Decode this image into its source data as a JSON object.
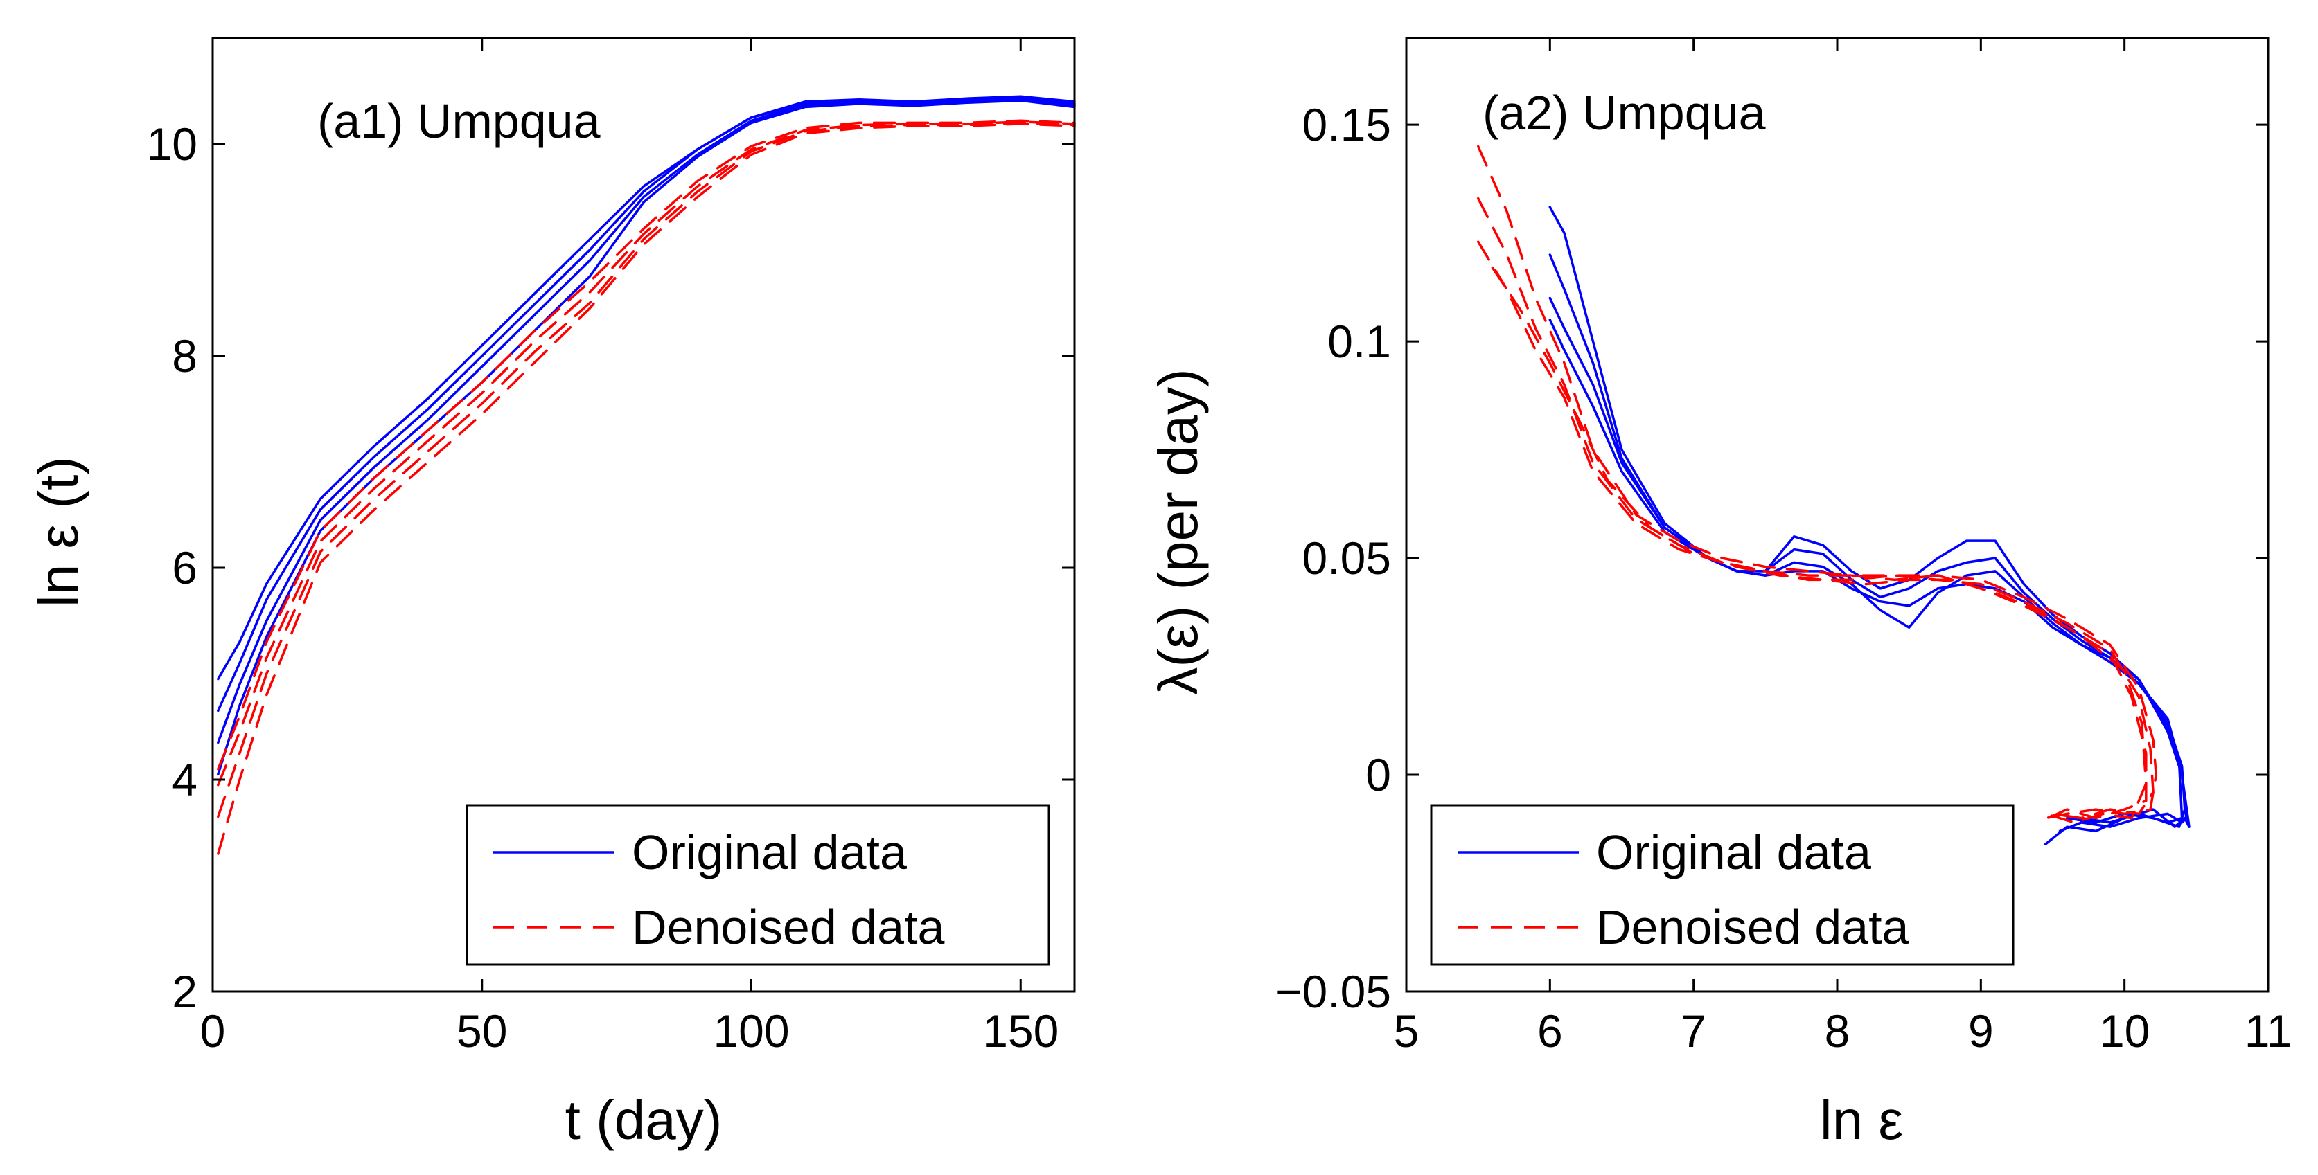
{
  "colors": {
    "original": "#0000ff",
    "denoised": "#ff0000",
    "axis": "#000000",
    "background": "#ffffff"
  },
  "chart_data": [
    {
      "type": "line",
      "title": "(a1) Umpqua",
      "xlabel": "t (day)",
      "ylabel": "ln ε (t)",
      "xlim": [
        0,
        160
      ],
      "ylim": [
        2,
        11
      ],
      "xticks": [
        0,
        50,
        100,
        150
      ],
      "yticks": [
        2,
        4,
        6,
        8,
        10
      ],
      "xtick_labels": [
        "0",
        "50",
        "100",
        "150"
      ],
      "ytick_labels": [
        "2",
        "4",
        "6",
        "8",
        "10"
      ],
      "grid": false,
      "legend": {
        "position": "bottom-right",
        "entries": [
          {
            "label": "Original data",
            "style": "solid",
            "color": "#0000ff"
          },
          {
            "label": "Denoised data",
            "style": "dashed",
            "color": "#ff0000"
          }
        ]
      },
      "series": [
        {
          "name": "Original data",
          "style": "solid",
          "color": "#0000ff",
          "x": [
            1,
            5,
            10,
            20,
            30,
            40,
            50,
            60,
            70,
            80,
            90,
            100,
            110,
            120,
            130,
            140,
            150,
            160
          ],
          "y": [
            4.95,
            5.3,
            5.85,
            6.65,
            7.15,
            7.6,
            8.1,
            8.6,
            9.1,
            9.6,
            9.95,
            10.25,
            10.4,
            10.42,
            10.4,
            10.43,
            10.45,
            10.4
          ]
        },
        {
          "name": "Original data",
          "style": "solid",
          "color": "#0000ff",
          "x": [
            1,
            5,
            10,
            20,
            30,
            40,
            50,
            60,
            70,
            80,
            90,
            100,
            110,
            120,
            130,
            140,
            150,
            160
          ],
          "y": [
            4.65,
            5.1,
            5.7,
            6.55,
            7.05,
            7.5,
            8.0,
            8.5,
            9.0,
            9.55,
            9.95,
            10.25,
            10.38,
            10.4,
            10.38,
            10.41,
            10.43,
            10.38
          ]
        },
        {
          "name": "Original data",
          "style": "solid",
          "color": "#0000ff",
          "x": [
            1,
            5,
            10,
            20,
            30,
            40,
            50,
            60,
            70,
            80,
            90,
            100,
            110,
            120,
            130,
            140,
            150,
            160
          ],
          "y": [
            4.35,
            4.9,
            5.5,
            6.45,
            6.95,
            7.4,
            7.9,
            8.4,
            8.9,
            9.5,
            9.9,
            10.22,
            10.37,
            10.4,
            10.37,
            10.4,
            10.42,
            10.36
          ]
        },
        {
          "name": "Original data",
          "style": "solid",
          "color": "#0000ff",
          "x": [
            1,
            5,
            10,
            20,
            30,
            40,
            50,
            60,
            70,
            80,
            90,
            100,
            110,
            120,
            130,
            140,
            150,
            160
          ],
          "y": [
            4.05,
            4.7,
            5.35,
            6.35,
            6.85,
            7.3,
            7.75,
            8.25,
            8.75,
            9.45,
            9.88,
            10.2,
            10.35,
            10.38,
            10.36,
            10.39,
            10.41,
            10.35
          ]
        },
        {
          "name": "Denoised data",
          "style": "dashed",
          "color": "#ff0000",
          "x": [
            1,
            5,
            10,
            20,
            30,
            40,
            50,
            60,
            70,
            80,
            90,
            100,
            110,
            120,
            130,
            140,
            150,
            160
          ],
          "y": [
            4.1,
            4.6,
            5.3,
            6.35,
            6.85,
            7.3,
            7.75,
            8.25,
            8.7,
            9.2,
            9.65,
            9.98,
            10.15,
            10.2,
            10.2,
            10.2,
            10.22,
            10.2
          ]
        },
        {
          "name": "Denoised data",
          "style": "dashed",
          "color": "#ff0000",
          "x": [
            1,
            5,
            10,
            20,
            30,
            40,
            50,
            60,
            70,
            80,
            90,
            100,
            110,
            120,
            130,
            140,
            150,
            160
          ],
          "y": [
            3.95,
            4.45,
            5.15,
            6.25,
            6.75,
            7.2,
            7.65,
            8.15,
            8.6,
            9.15,
            9.6,
            9.95,
            10.13,
            10.18,
            10.19,
            10.19,
            10.21,
            10.19
          ]
        },
        {
          "name": "Denoised data",
          "style": "dashed",
          "color": "#ff0000",
          "x": [
            1,
            5,
            10,
            20,
            30,
            40,
            50,
            60,
            70,
            80,
            90,
            100,
            110,
            120,
            130,
            140,
            150,
            160
          ],
          "y": [
            3.65,
            4.25,
            5.0,
            6.15,
            6.65,
            7.1,
            7.55,
            8.05,
            8.5,
            9.1,
            9.55,
            9.93,
            10.12,
            10.17,
            10.18,
            10.18,
            10.2,
            10.18
          ]
        },
        {
          "name": "Denoised data",
          "style": "dashed",
          "color": "#ff0000",
          "x": [
            1,
            5,
            10,
            20,
            30,
            40,
            50,
            60,
            70,
            80,
            90,
            100,
            110,
            120,
            130,
            140,
            150,
            160
          ],
          "y": [
            3.3,
            4.0,
            4.8,
            6.05,
            6.55,
            7.0,
            7.45,
            7.95,
            8.45,
            9.05,
            9.5,
            9.9,
            10.1,
            10.15,
            10.17,
            10.17,
            10.19,
            10.17
          ]
        }
      ]
    },
    {
      "type": "line",
      "title": "(a2) Umpqua",
      "xlabel": "ln ε",
      "ylabel": "λ(ε) (per day)",
      "xlim": [
        5,
        11
      ],
      "ylim": [
        -0.05,
        0.17
      ],
      "xticks": [
        5,
        6,
        7,
        8,
        9,
        10,
        11
      ],
      "yticks": [
        -0.05,
        0,
        0.05,
        0.1,
        0.15
      ],
      "xtick_labels": [
        "5",
        "6",
        "7",
        "8",
        "9",
        "10",
        "11"
      ],
      "ytick_labels": [
        "−0.05",
        "0",
        "0.05",
        "0.1",
        "0.15"
      ],
      "grid": false,
      "legend": {
        "position": "bottom-left",
        "entries": [
          {
            "label": "Original data",
            "style": "solid",
            "color": "#0000ff"
          },
          {
            "label": "Denoised data",
            "style": "dashed",
            "color": "#ff0000"
          }
        ]
      },
      "series": [
        {
          "name": "Original data",
          "style": "solid",
          "color": "#0000ff",
          "x": [
            6.0,
            6.1,
            6.3,
            6.5,
            6.8,
            7.1,
            7.3,
            7.5,
            7.7,
            7.9,
            8.1,
            8.3,
            8.5,
            8.7,
            8.9,
            9.1,
            9.3,
            9.5,
            9.7,
            9.9,
            10.1,
            10.3,
            10.4,
            10.45,
            10.42,
            10.35,
            10.2,
            10.0,
            9.8,
            9.6,
            9.45
          ],
          "y": [
            0.131,
            0.125,
            0.1,
            0.075,
            0.058,
            0.05,
            0.047,
            0.047,
            0.055,
            0.053,
            0.047,
            0.043,
            0.045,
            0.05,
            0.054,
            0.054,
            0.044,
            0.037,
            0.032,
            0.028,
            0.022,
            0.01,
            0.0,
            -0.012,
            -0.01,
            -0.012,
            -0.008,
            -0.01,
            -0.013,
            -0.012,
            -0.016
          ]
        },
        {
          "name": "Original data",
          "style": "solid",
          "color": "#0000ff",
          "x": [
            6.0,
            6.1,
            6.3,
            6.5,
            6.8,
            7.1,
            7.3,
            7.5,
            7.7,
            7.9,
            8.1,
            8.3,
            8.5,
            8.7,
            8.9,
            9.1,
            9.3,
            9.5,
            9.7,
            9.9,
            10.1,
            10.3,
            10.4,
            10.43,
            10.4,
            10.3,
            10.1,
            9.9,
            9.7,
            9.55
          ],
          "y": [
            0.12,
            0.112,
            0.095,
            0.073,
            0.057,
            0.05,
            0.047,
            0.047,
            0.052,
            0.051,
            0.045,
            0.041,
            0.043,
            0.047,
            0.049,
            0.05,
            0.042,
            0.036,
            0.031,
            0.027,
            0.022,
            0.011,
            0.001,
            -0.01,
            -0.011,
            -0.009,
            -0.01,
            -0.012,
            -0.011,
            -0.013
          ]
        },
        {
          "name": "Original data",
          "style": "solid",
          "color": "#0000ff",
          "x": [
            6.0,
            6.1,
            6.3,
            6.5,
            6.8,
            7.1,
            7.3,
            7.5,
            7.7,
            7.9,
            8.1,
            8.3,
            8.5,
            8.7,
            8.9,
            9.1,
            9.3,
            9.5,
            9.7,
            9.9,
            10.1,
            10.3,
            10.4,
            10.42,
            10.38,
            10.2,
            10.0,
            9.8,
            9.6
          ],
          "y": [
            0.11,
            0.103,
            0.09,
            0.072,
            0.057,
            0.05,
            0.047,
            0.046,
            0.049,
            0.048,
            0.044,
            0.038,
            0.034,
            0.042,
            0.046,
            0.047,
            0.041,
            0.035,
            0.03,
            0.027,
            0.021,
            0.012,
            0.002,
            -0.008,
            -0.012,
            -0.01,
            -0.009,
            -0.011,
            -0.01
          ]
        },
        {
          "name": "Original data",
          "style": "solid",
          "color": "#0000ff",
          "x": [
            6.0,
            6.1,
            6.3,
            6.5,
            6.8,
            7.1,
            7.3,
            7.5,
            7.7,
            7.9,
            8.1,
            8.3,
            8.5,
            8.7,
            8.9,
            9.1,
            9.3,
            9.5,
            9.7,
            9.9,
            10.1,
            10.3,
            10.38,
            10.4,
            10.3,
            10.1,
            9.9,
            9.7
          ],
          "y": [
            0.105,
            0.098,
            0.085,
            0.07,
            0.056,
            0.05,
            0.047,
            0.046,
            0.047,
            0.047,
            0.043,
            0.04,
            0.039,
            0.043,
            0.044,
            0.043,
            0.04,
            0.034,
            0.03,
            0.026,
            0.021,
            0.013,
            0.003,
            -0.01,
            -0.011,
            -0.009,
            -0.011,
            -0.01
          ]
        },
        {
          "name": "Denoised data",
          "style": "dashed",
          "color": "#ff0000",
          "x": [
            5.5,
            5.7,
            5.9,
            6.1,
            6.3,
            6.6,
            6.9,
            7.2,
            7.5,
            7.8,
            8.1,
            8.4,
            8.7,
            9.0,
            9.3,
            9.6,
            9.9,
            10.1,
            10.2,
            10.22,
            10.18,
            10.0,
            9.8,
            9.6,
            9.45
          ],
          "y": [
            0.145,
            0.13,
            0.11,
            0.095,
            0.075,
            0.06,
            0.054,
            0.05,
            0.048,
            0.047,
            0.046,
            0.045,
            0.046,
            0.045,
            0.041,
            0.036,
            0.03,
            0.02,
            0.008,
            0.0,
            -0.008,
            -0.009,
            -0.008,
            -0.009,
            -0.01
          ]
        },
        {
          "name": "Denoised data",
          "style": "dashed",
          "color": "#ff0000",
          "x": [
            5.5,
            5.7,
            5.9,
            6.1,
            6.3,
            6.6,
            6.9,
            7.2,
            7.5,
            7.8,
            8.1,
            8.4,
            8.7,
            9.0,
            9.3,
            9.6,
            9.9,
            10.1,
            10.18,
            10.2,
            10.1,
            9.9,
            9.7,
            9.5
          ],
          "y": [
            0.133,
            0.12,
            0.103,
            0.09,
            0.072,
            0.059,
            0.053,
            0.049,
            0.047,
            0.046,
            0.046,
            0.046,
            0.045,
            0.044,
            0.04,
            0.035,
            0.029,
            0.018,
            0.006,
            -0.004,
            -0.009,
            -0.008,
            -0.01,
            -0.009
          ]
        },
        {
          "name": "Denoised data",
          "style": "dashed",
          "color": "#ff0000",
          "x": [
            5.5,
            5.7,
            5.9,
            6.1,
            6.3,
            6.6,
            6.9,
            7.2,
            7.5,
            7.8,
            8.1,
            8.4,
            8.7,
            9.0,
            9.3,
            9.6,
            9.9,
            10.05,
            10.15,
            10.15,
            10.0,
            9.8,
            9.6,
            9.4
          ],
          "y": [
            0.123,
            0.112,
            0.098,
            0.087,
            0.07,
            0.058,
            0.052,
            0.049,
            0.047,
            0.045,
            0.045,
            0.046,
            0.046,
            0.043,
            0.039,
            0.034,
            0.028,
            0.018,
            0.005,
            -0.006,
            -0.008,
            -0.01,
            -0.008,
            -0.011
          ]
        },
        {
          "name": "Denoised data",
          "style": "dashed",
          "color": "#ff0000",
          "x": [
            5.6,
            5.8,
            6.0,
            6.2,
            6.4,
            6.7,
            7.0,
            7.3,
            7.6,
            7.9,
            8.2,
            8.5,
            8.8,
            9.1,
            9.4,
            9.7,
            10.0,
            10.12,
            10.15,
            10.05,
            9.85,
            9.65,
            9.45
          ],
          "y": [
            0.117,
            0.107,
            0.095,
            0.082,
            0.068,
            0.057,
            0.051,
            0.048,
            0.046,
            0.045,
            0.044,
            0.045,
            0.045,
            0.042,
            0.038,
            0.032,
            0.024,
            0.012,
            -0.002,
            -0.01,
            -0.009,
            -0.011,
            -0.009
          ]
        }
      ]
    }
  ]
}
